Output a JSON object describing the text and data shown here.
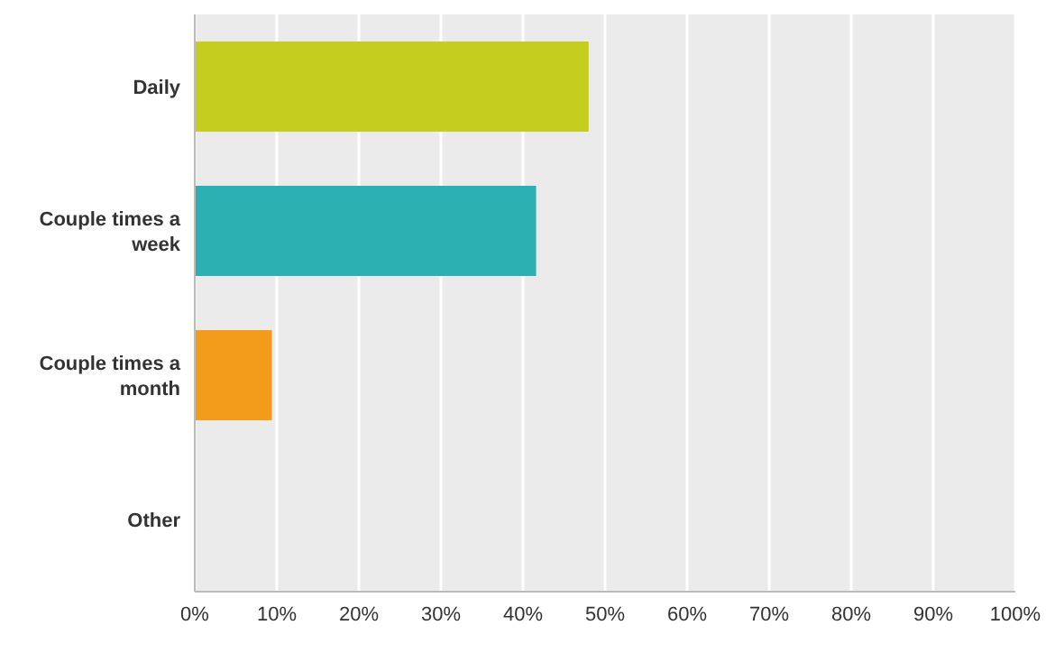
{
  "chart_data": {
    "type": "bar",
    "orientation": "horizontal",
    "categories": [
      "Daily",
      "Couple times a week",
      "Couple times a month",
      "Other"
    ],
    "values": [
      48,
      41.6,
      9.4,
      0
    ],
    "colors": [
      "#c5cd1f",
      "#2db0b1",
      "#f39c1c",
      "#999999"
    ],
    "xlim": [
      0,
      100
    ],
    "xticks": [
      {
        "value": 0,
        "label": "0%"
      },
      {
        "value": 10,
        "label": "10%"
      },
      {
        "value": 20,
        "label": "20%"
      },
      {
        "value": 30,
        "label": "30%"
      },
      {
        "value": 40,
        "label": "40%"
      },
      {
        "value": 50,
        "label": "50%"
      },
      {
        "value": 60,
        "label": "60%"
      },
      {
        "value": 70,
        "label": "70%"
      },
      {
        "value": 80,
        "label": "80%"
      },
      {
        "value": 90,
        "label": "90%"
      },
      {
        "value": 100,
        "label": "100%"
      }
    ],
    "grid": "x"
  }
}
